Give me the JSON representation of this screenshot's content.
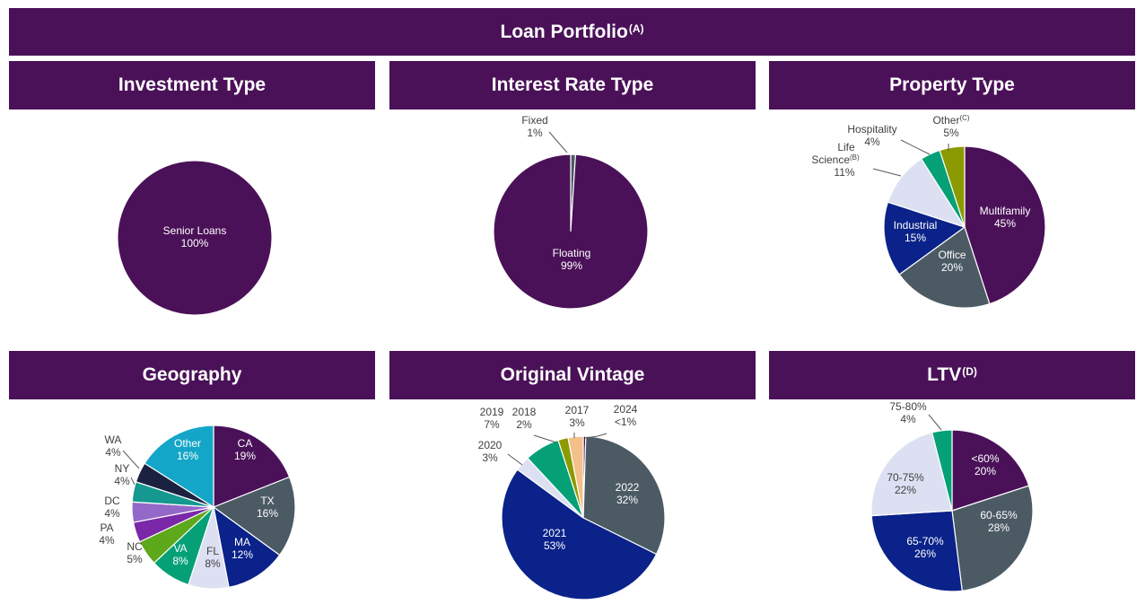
{
  "page": {
    "title": "Loan Portfolio",
    "title_sup": "(A)"
  },
  "panels": [
    {
      "title": "Investment Type",
      "sup": ""
    },
    {
      "title": "Interest Rate Type",
      "sup": ""
    },
    {
      "title": "Property Type",
      "sup": ""
    },
    {
      "title": "Geography",
      "sup": ""
    },
    {
      "title": "Original Vintage",
      "sup": ""
    },
    {
      "title": "LTV",
      "sup": "(D)"
    }
  ],
  "colors": {
    "banner": "#4a1158",
    "purple": "#4a1158",
    "slate": "#4c5a64",
    "navy": "#0a2289",
    "lavender": "#dde0f2",
    "green": "#06a077",
    "olive": "#8c9a02",
    "teal": "#14a6c8",
    "lime": "#5ea81c",
    "violet": "#9468c8",
    "dark_navy": "#1a2240",
    "peach": "#f4c089"
  },
  "chart_data": [
    {
      "id": "investment",
      "type": "pie",
      "title": "Investment Type",
      "slices": [
        {
          "label": "Senior Loans",
          "pct_label": "100%",
          "value": 100,
          "color": "#4a1158",
          "label_color": "#ffffff"
        }
      ]
    },
    {
      "id": "interest",
      "type": "pie",
      "title": "Interest Rate Type",
      "slices": [
        {
          "label": "Fixed",
          "pct_label": "1%",
          "value": 1,
          "color": "#4c5a64",
          "label_color": "#404040"
        },
        {
          "label": "Floating",
          "pct_label": "99%",
          "value": 99,
          "color": "#4a1158",
          "label_color": "#ffffff"
        }
      ]
    },
    {
      "id": "property",
      "type": "pie",
      "title": "Property Type",
      "slices": [
        {
          "label": "Multifamily",
          "pct_label": "45%",
          "value": 45,
          "color": "#4a1158",
          "label_color": "#ffffff"
        },
        {
          "label": "Office",
          "pct_label": "20%",
          "value": 20,
          "color": "#4c5a64",
          "label_color": "#ffffff"
        },
        {
          "label": "Industrial",
          "pct_label": "15%",
          "value": 15,
          "color": "#0a2289",
          "label_color": "#ffffff"
        },
        {
          "label": "Life Science",
          "label_sup": "(B)",
          "pct_label": "11%",
          "value": 11,
          "color": "#dde0f2",
          "label_color": "#404040"
        },
        {
          "label": "Hospitality",
          "pct_label": "4%",
          "value": 4,
          "color": "#06a077",
          "label_color": "#404040"
        },
        {
          "label": "Other",
          "label_sup": "(C)",
          "pct_label": "5%",
          "value": 5,
          "color": "#8c9a02",
          "label_color": "#404040"
        }
      ]
    },
    {
      "id": "geography",
      "type": "pie",
      "title": "Geography",
      "slices": [
        {
          "label": "CA",
          "pct_label": "19%",
          "value": 19,
          "color": "#4a1158",
          "label_color": "#ffffff"
        },
        {
          "label": "TX",
          "pct_label": "16%",
          "value": 16,
          "color": "#4c5a64",
          "label_color": "#ffffff"
        },
        {
          "label": "MA",
          "pct_label": "12%",
          "value": 12,
          "color": "#0a2289",
          "label_color": "#ffffff"
        },
        {
          "label": "FL",
          "pct_label": "8%",
          "value": 8,
          "color": "#dde0f2",
          "label_color": "#404040"
        },
        {
          "label": "VA",
          "pct_label": "8%",
          "value": 8,
          "color": "#06a077",
          "label_color": "#ffffff"
        },
        {
          "label": "NC",
          "pct_label": "5%",
          "value": 5,
          "color": "#5ea81c",
          "label_color": "#404040"
        },
        {
          "label": "PA",
          "pct_label": "4%",
          "value": 4,
          "color": "#7a28a8",
          "label_color": "#404040"
        },
        {
          "label": "DC",
          "pct_label": "4%",
          "value": 4,
          "color": "#9468c8",
          "label_color": "#404040"
        },
        {
          "label": "NY",
          "pct_label": "4%",
          "value": 4,
          "color": "#149890",
          "label_color": "#404040"
        },
        {
          "label": "WA",
          "pct_label": "4%",
          "value": 4,
          "color": "#1a2240",
          "label_color": "#404040"
        },
        {
          "label": "Other",
          "pct_label": "16%",
          "value": 16,
          "color": "#14a6c8",
          "label_color": "#ffffff"
        }
      ]
    },
    {
      "id": "vintage",
      "type": "pie",
      "title": "Original Vintage",
      "slices": [
        {
          "label": "2024",
          "pct_label": "<1%",
          "value": 0.5,
          "color": "#4a1158",
          "label_color": "#404040"
        },
        {
          "label": "2022",
          "pct_label": "32%",
          "value": 32,
          "color": "#4c5a64",
          "label_color": "#ffffff"
        },
        {
          "label": "2021",
          "pct_label": "53%",
          "value": 53,
          "color": "#0a2289",
          "label_color": "#ffffff"
        },
        {
          "label": "2020",
          "pct_label": "3%",
          "value": 3,
          "color": "#dde0f2",
          "label_color": "#404040"
        },
        {
          "label": "2019",
          "pct_label": "7%",
          "value": 7,
          "color": "#06a077",
          "label_color": "#404040"
        },
        {
          "label": "2018",
          "pct_label": "2%",
          "value": 2,
          "color": "#8c9a02",
          "label_color": "#404040"
        },
        {
          "label": "2017",
          "pct_label": "3%",
          "value": 3,
          "color": "#f4c089",
          "label_color": "#404040"
        }
      ]
    },
    {
      "id": "ltv",
      "type": "pie",
      "title": "LTV",
      "slices": [
        {
          "label": "<60%",
          "pct_label": "20%",
          "value": 20,
          "color": "#4a1158",
          "label_color": "#ffffff"
        },
        {
          "label": "60-65%",
          "pct_label": "28%",
          "value": 28,
          "color": "#4c5a64",
          "label_color": "#ffffff"
        },
        {
          "label": "65-70%",
          "pct_label": "26%",
          "value": 26,
          "color": "#0a2289",
          "label_color": "#ffffff"
        },
        {
          "label": "70-75%",
          "pct_label": "22%",
          "value": 22,
          "color": "#dde0f2",
          "label_color": "#404040"
        },
        {
          "label": "75-80%",
          "pct_label": "4%",
          "value": 4,
          "color": "#06a077",
          "label_color": "#404040"
        }
      ]
    }
  ]
}
